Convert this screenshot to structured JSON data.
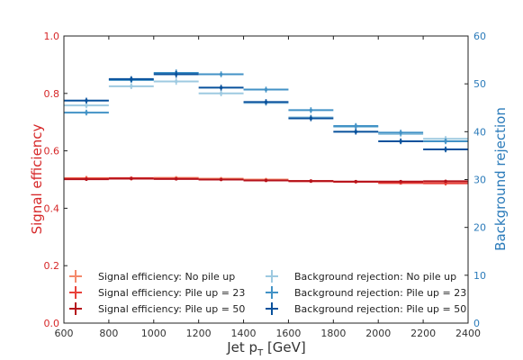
{
  "chart_data": {
    "type": "scatter",
    "title": "",
    "xlabel": "Jet p_T [GeV]",
    "xlabel_main": "Jet p",
    "xlabel_sub": "T",
    "xlabel_unit": " [GeV]",
    "ylabel_left": "Signal efficiency",
    "ylabel_right": "Background rejection",
    "xlim": [
      600,
      2400
    ],
    "ylim_left": [
      0.0,
      1.0
    ],
    "ylim_right": [
      0,
      60
    ],
    "xticks": [
      600,
      800,
      1000,
      1200,
      1400,
      1600,
      1800,
      2000,
      2200,
      2400
    ],
    "xtick_labels": [
      "600",
      "800",
      "1000",
      "1200",
      "1400",
      "1600",
      "1800",
      "2000",
      "2200",
      "2400"
    ],
    "yticks_left": [
      0.0,
      0.2,
      0.4,
      0.6,
      0.8,
      1.0
    ],
    "ytick_labels_left": [
      "0.0",
      "0.2",
      "0.4",
      "0.6",
      "0.8",
      "1.0"
    ],
    "yticks_right": [
      0,
      10,
      20,
      30,
      40,
      50,
      60
    ],
    "ytick_labels_right": [
      "0",
      "10",
      "20",
      "30",
      "40",
      "50",
      "60"
    ],
    "grid": false,
    "legend_position": "bottom",
    "bin_edges": [
      600,
      800,
      1000,
      1200,
      1400,
      1600,
      1800,
      2000,
      2200,
      2400
    ],
    "series": [
      {
        "name": "Signal efficiency: No pile up",
        "axis": "left",
        "color": "#f4896b",
        "values": [
          0.505,
          0.503,
          0.506,
          0.503,
          0.5,
          0.495,
          0.492,
          0.49,
          0.487
        ],
        "errors": [
          0.008,
          0.006,
          0.006,
          0.006,
          0.006,
          0.005,
          0.005,
          0.006,
          0.008
        ]
      },
      {
        "name": "Signal efficiency: Pile up = 23",
        "axis": "left",
        "color": "#e8413a",
        "values": [
          0.503,
          0.505,
          0.503,
          0.5,
          0.497,
          0.494,
          0.492,
          0.488,
          0.487
        ],
        "errors": [
          0.007,
          0.005,
          0.005,
          0.005,
          0.005,
          0.004,
          0.004,
          0.005,
          0.007
        ]
      },
      {
        "name": "Signal efficiency: Pile up = 50",
        "axis": "left",
        "color": "#b5121b",
        "values": [
          0.501,
          0.503,
          0.502,
          0.5,
          0.497,
          0.495,
          0.493,
          0.493,
          0.494
        ],
        "errors": [
          0.005,
          0.004,
          0.004,
          0.004,
          0.004,
          0.003,
          0.003,
          0.004,
          0.005
        ]
      },
      {
        "name": "Background rejection: No pile up",
        "axis": "right",
        "color": "#9ecae1",
        "values": [
          45.5,
          49.5,
          50.5,
          48.0,
          46.0,
          43.0,
          41.0,
          39.5,
          38.5
        ],
        "errors": [
          0.6,
          0.6,
          0.7,
          0.6,
          0.6,
          0.6,
          0.6,
          0.6,
          0.6
        ]
      },
      {
        "name": "Background rejection: Pile up = 23",
        "axis": "right",
        "color": "#4292c6",
        "values": [
          44.0,
          50.8,
          52.3,
          52.0,
          48.8,
          44.5,
          41.2,
          39.8,
          38.0
        ],
        "errors": [
          0.6,
          0.6,
          0.7,
          0.6,
          0.6,
          0.6,
          0.6,
          0.6,
          0.6
        ]
      },
      {
        "name": "Background rejection: Pile up = 50",
        "axis": "right",
        "color": "#08519c",
        "values": [
          46.5,
          51.0,
          52.0,
          49.2,
          46.2,
          42.8,
          40.0,
          38.0,
          36.3
        ],
        "errors": [
          0.6,
          0.6,
          0.7,
          0.6,
          0.6,
          0.6,
          0.6,
          0.6,
          0.6
        ]
      }
    ]
  }
}
